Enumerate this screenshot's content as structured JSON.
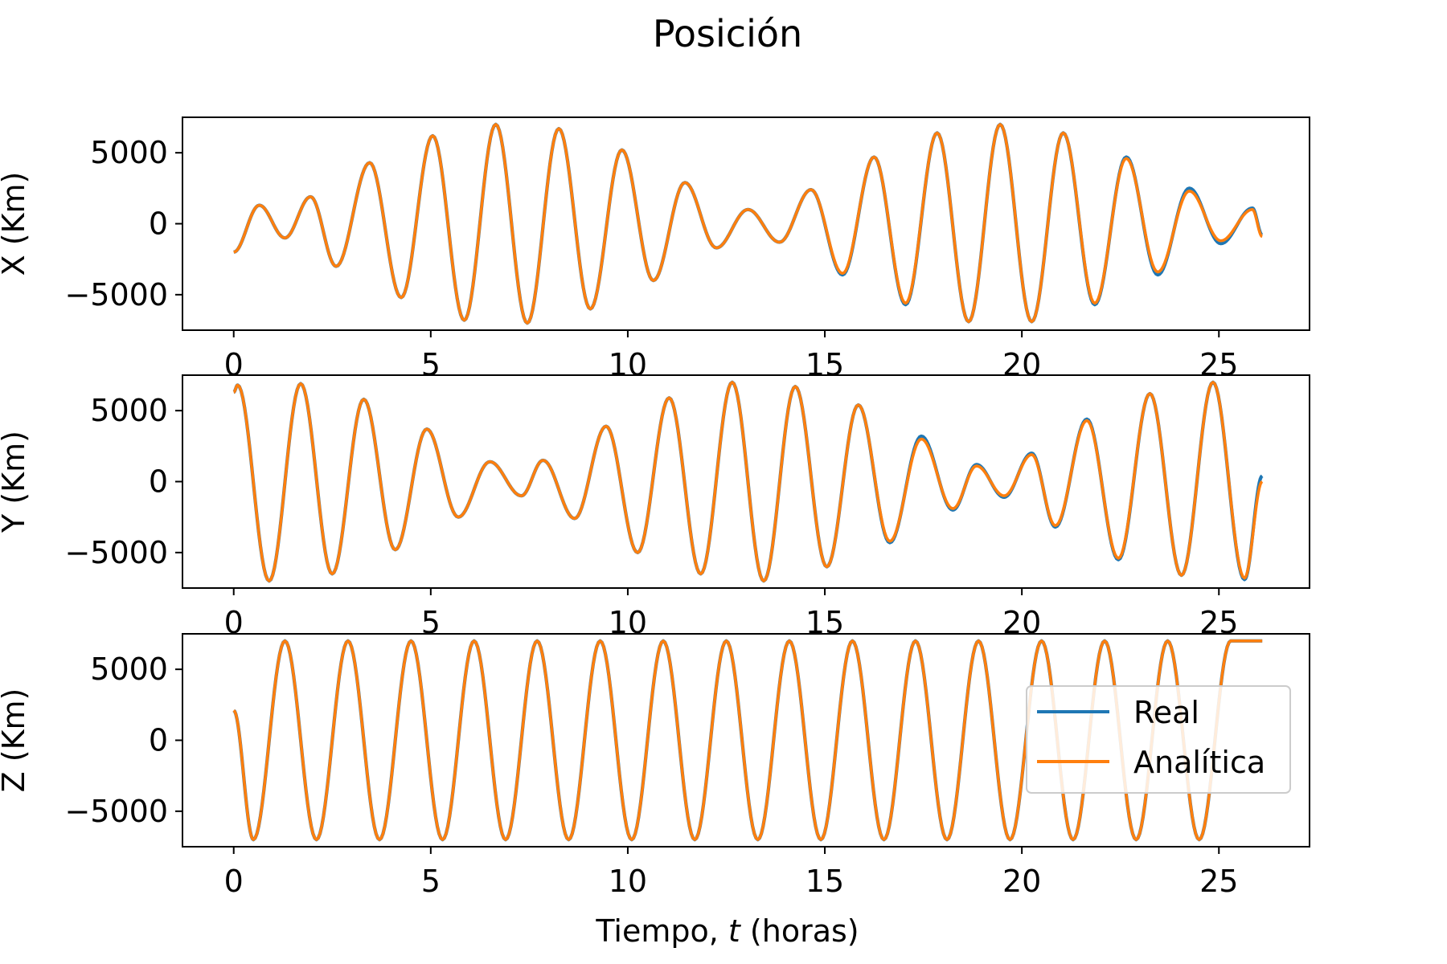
{
  "figure": {
    "title": "Posición"
  },
  "series_colors": {
    "Real": "#1f77b4",
    "Analítica": "#ff7f0e"
  },
  "legend": {
    "placement": "center-right of bottom panel",
    "entries": [
      "Real",
      "Analítica"
    ]
  },
  "xlabel_parts": {
    "prefix": "Tiempo, ",
    "var": "t",
    "suffix": " (horas)"
  },
  "chart_data": [
    {
      "type": "line",
      "ylabel": "X (Km)",
      "xlim": [
        -1.3,
        27.3
      ],
      "ylim": [
        -7500,
        7500
      ],
      "xticks": [
        0,
        5,
        10,
        15,
        20,
        25
      ],
      "yticks": [
        -5000,
        0,
        5000
      ],
      "grid": false,
      "t_range": [
        0,
        26.1
      ],
      "x": [
        0,
        0.65,
        1.3,
        1.95,
        2.6,
        3.45,
        4.25,
        5.05,
        5.85,
        6.65,
        7.45,
        8.25,
        9.05,
        9.85,
        10.65,
        11.45,
        12.25,
        13.05,
        13.85,
        14.65,
        15.45,
        16.25,
        17.05,
        17.85,
        18.65,
        19.45,
        20.25,
        21.05,
        21.85,
        22.65,
        23.45,
        24.25,
        25.05,
        25.85,
        26.1
      ],
      "series": [
        {
          "name": "Real",
          "values": [
            -2000,
            1300,
            -1000,
            1900,
            -3000,
            4300,
            -5200,
            6200,
            -6800,
            7000,
            -7000,
            6700,
            -6000,
            5200,
            -4000,
            2900,
            -1700,
            1000,
            -1300,
            2400,
            -3600,
            4700,
            -5700,
            6400,
            -6900,
            7000,
            -6900,
            6400,
            -5700,
            4700,
            -3600,
            2500,
            -1400,
            1100,
            -800
          ]
        },
        {
          "name": "Analítica",
          "values": [
            -2000,
            1300,
            -1000,
            1900,
            -3000,
            4300,
            -5200,
            6200,
            -6800,
            7000,
            -7000,
            6700,
            -6000,
            5200,
            -4000,
            2900,
            -1700,
            1000,
            -1300,
            2400,
            -3500,
            4700,
            -5600,
            6400,
            -6900,
            7000,
            -6900,
            6400,
            -5600,
            4600,
            -3400,
            2300,
            -1200,
            1000,
            -900
          ]
        }
      ]
    },
    {
      "type": "line",
      "ylabel": "Y (Km)",
      "xlim": [
        -1.3,
        27.3
      ],
      "ylim": [
        -7500,
        7500
      ],
      "xticks": [
        0,
        5,
        10,
        15,
        20,
        25
      ],
      "yticks": [
        -5000,
        0,
        5000
      ],
      "grid": false,
      "t_range": [
        0,
        26.1
      ],
      "x": [
        0,
        0.1,
        0.9,
        1.7,
        2.5,
        3.3,
        4.1,
        4.9,
        5.7,
        6.5,
        7.3,
        7.85,
        8.65,
        9.45,
        10.25,
        11.05,
        11.85,
        12.65,
        13.45,
        14.25,
        15.05,
        15.85,
        16.65,
        17.45,
        18.25,
        18.85,
        19.55,
        20.25,
        20.85,
        21.65,
        22.45,
        23.25,
        24.05,
        24.85,
        25.65,
        26.1
      ],
      "series": [
        {
          "name": "Real",
          "values": [
            6300,
            6800,
            -7000,
            6900,
            -6500,
            5800,
            -4800,
            3700,
            -2500,
            1400,
            -1000,
            1500,
            -2600,
            3900,
            -5000,
            5900,
            -6500,
            7000,
            -7000,
            6700,
            -6000,
            5400,
            -4300,
            3200,
            -2000,
            1200,
            -1100,
            2000,
            -3200,
            4400,
            -5500,
            6200,
            -6600,
            7000,
            -6900,
            400
          ]
        },
        {
          "name": "Analítica",
          "values": [
            6300,
            6800,
            -7000,
            6900,
            -6500,
            5800,
            -4800,
            3700,
            -2500,
            1400,
            -1000,
            1500,
            -2600,
            3900,
            -5000,
            5900,
            -6500,
            7000,
            -7000,
            6700,
            -6000,
            5400,
            -4200,
            3000,
            -1900,
            1100,
            -1000,
            1900,
            -3100,
            4300,
            -5400,
            6200,
            -6600,
            7000,
            -6800,
            0
          ]
        }
      ]
    },
    {
      "type": "line",
      "ylabel": "Z (Km)",
      "xlim": [
        -1.3,
        27.3
      ],
      "ylim": [
        -7500,
        7500
      ],
      "xticks": [
        0,
        5,
        10,
        15,
        20,
        25
      ],
      "yticks": [
        -5000,
        0,
        5000
      ],
      "grid": false,
      "t_range": [
        0,
        26.1
      ],
      "x": [
        0,
        0.5,
        1.3,
        2.1,
        2.9,
        3.7,
        4.5,
        5.3,
        6.1,
        6.9,
        7.7,
        8.5,
        9.3,
        10.1,
        10.9,
        11.7,
        12.5,
        13.3,
        14.1,
        14.9,
        15.7,
        16.5,
        17.3,
        18.1,
        18.9,
        19.7,
        20.5,
        21.3,
        22.1,
        22.9,
        23.7,
        24.5,
        25.3,
        26.1
      ],
      "series": [
        {
          "name": "Real",
          "values": [
            2100,
            -7000,
            7000,
            -7000,
            7000,
            -7000,
            7000,
            -7000,
            7000,
            -7000,
            7000,
            -7000,
            7000,
            -7000,
            7000,
            -7000,
            7000,
            -7000,
            7000,
            -7000,
            7000,
            -7000,
            7000,
            -7000,
            7000,
            -7000,
            7000,
            -7000,
            7000,
            -7000,
            7000,
            -7000,
            7000,
            7000
          ]
        },
        {
          "name": "Analítica",
          "values": [
            2100,
            -7000,
            7000,
            -7000,
            7000,
            -7000,
            7000,
            -7000,
            7000,
            -7000,
            7000,
            -7000,
            7000,
            -7000,
            7000,
            -7000,
            7000,
            -7000,
            7000,
            -7000,
            7000,
            -7000,
            7000,
            -7000,
            7000,
            -7000,
            7000,
            -7000,
            7000,
            -7000,
            7000,
            -7000,
            7000,
            7000
          ]
        }
      ]
    }
  ]
}
